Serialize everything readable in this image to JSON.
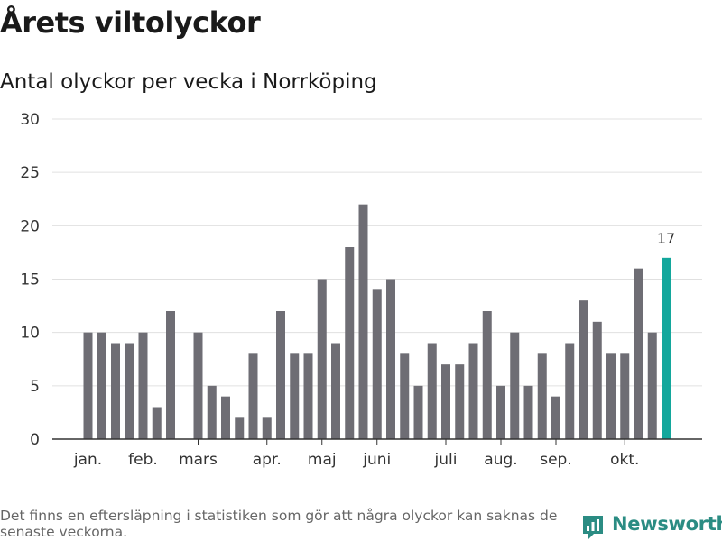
{
  "title": "Årets viltolyckor",
  "subtitle": "Antal olyckor per vecka i Norrköping",
  "footnote": "Det finns en eftersläpning i statistiken som gör att några olyckor kan saknas de senaste veckorna.",
  "brand": {
    "name": "Newsworthy",
    "icon": "newsworthy-logo-icon",
    "color": "#2b8c83"
  },
  "colors": {
    "bar": "#6e6d74",
    "highlight": "#13a79c",
    "grid": "#e0e0e0",
    "axis": "#333333"
  },
  "chart_data": {
    "type": "bar",
    "title": "Antal olyckor per vecka i Norrköping",
    "xlabel": "",
    "ylabel": "",
    "ylim": [
      0,
      30
    ],
    "yticks": [
      0,
      5,
      10,
      15,
      20,
      25,
      30
    ],
    "grid": true,
    "x": [
      2,
      3,
      4,
      5,
      6,
      7,
      8,
      10,
      11,
      12,
      13,
      14,
      15,
      16,
      17,
      18,
      19,
      20,
      21,
      22,
      23,
      24,
      25,
      26,
      27,
      28,
      29,
      30,
      31,
      32,
      33,
      34,
      35,
      36,
      37,
      38,
      39,
      40,
      41,
      42,
      43
    ],
    "values": [
      10,
      10,
      9,
      9,
      10,
      3,
      12,
      10,
      5,
      4,
      2,
      8,
      2,
      12,
      8,
      8,
      15,
      9,
      18,
      22,
      14,
      15,
      8,
      5,
      9,
      7,
      7,
      9,
      12,
      5,
      10,
      5,
      8,
      4,
      9,
      13,
      11,
      8,
      8,
      16,
      10
    ],
    "highlight": {
      "x": 44,
      "value": 17,
      "label": "17"
    },
    "month_ticks": [
      {
        "x": 2.0,
        "label": "jan."
      },
      {
        "x": 6.0,
        "label": "feb."
      },
      {
        "x": 10.0,
        "label": "mars"
      },
      {
        "x": 15.0,
        "label": "apr."
      },
      {
        "x": 19.0,
        "label": "maj"
      },
      {
        "x": 23.0,
        "label": "juni"
      },
      {
        "x": 28.0,
        "label": "juli"
      },
      {
        "x": 32.0,
        "label": "aug."
      },
      {
        "x": 36.0,
        "label": "sep."
      },
      {
        "x": 41.0,
        "label": "okt."
      }
    ]
  }
}
